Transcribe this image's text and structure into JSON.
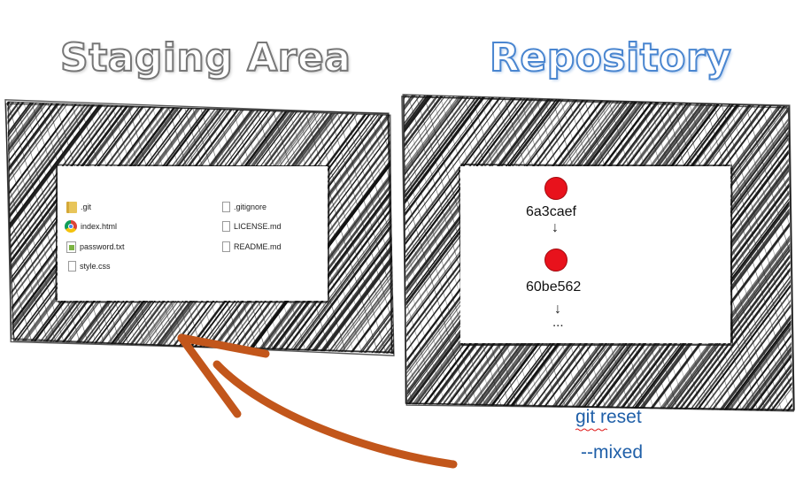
{
  "staging": {
    "title": "Staging Area",
    "files": [
      {
        "name": ".git",
        "icon": "folder-icon"
      },
      {
        "name": "index.html",
        "icon": "chrome-icon"
      },
      {
        "name": "password.txt",
        "icon": "text-file-icon"
      },
      {
        "name": "style.css",
        "icon": "document-icon"
      },
      {
        "name": ".gitignore",
        "icon": "document-icon"
      },
      {
        "name": "LICENSE.md",
        "icon": "document-icon"
      },
      {
        "name": "README.md",
        "icon": "document-icon"
      }
    ]
  },
  "repository": {
    "title": "Repository",
    "commits": [
      "6a3caef",
      "60be562"
    ],
    "arrow_glyph": "↓",
    "ellipsis": "..."
  },
  "command": {
    "line1": "git reset",
    "line2": "--mixed"
  },
  "colors": {
    "commit": "#e8121c",
    "arrow": "#c2561b",
    "command": "#1f5fa8",
    "repo_title": "#4a86d0",
    "staging_title": "#777777"
  }
}
